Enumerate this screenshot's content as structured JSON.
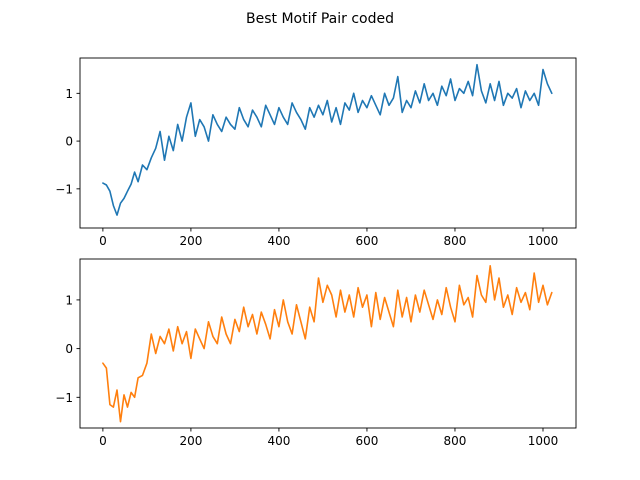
{
  "title": "Best Motif Pair coded",
  "chart_data": [
    {
      "type": "line",
      "title": "",
      "xlabel": "",
      "ylabel": "",
      "xlim": [
        -52,
        1075
      ],
      "ylim": [
        -1.82,
        1.74
      ],
      "xticks": [
        0,
        200,
        400,
        600,
        800,
        1000
      ],
      "yticks": [
        -1,
        0,
        1
      ],
      "grid": false,
      "series": [
        {
          "color": "#1f77b4",
          "x": [
            0,
            8,
            16,
            24,
            32,
            40,
            48,
            56,
            64,
            72,
            80,
            90,
            100,
            110,
            120,
            130,
            140,
            150,
            160,
            170,
            180,
            190,
            200,
            210,
            220,
            230,
            240,
            250,
            260,
            270,
            280,
            290,
            300,
            310,
            320,
            330,
            340,
            350,
            360,
            370,
            380,
            390,
            400,
            410,
            420,
            430,
            440,
            450,
            460,
            470,
            480,
            490,
            500,
            510,
            520,
            530,
            540,
            550,
            560,
            570,
            580,
            590,
            600,
            610,
            620,
            630,
            640,
            650,
            660,
            670,
            680,
            690,
            700,
            710,
            720,
            730,
            740,
            750,
            760,
            770,
            780,
            790,
            800,
            810,
            820,
            830,
            840,
            850,
            860,
            870,
            880,
            890,
            900,
            910,
            920,
            930,
            940,
            950,
            960,
            970,
            980,
            990,
            1000,
            1010,
            1020
          ],
          "y": [
            -0.88,
            -0.92,
            -1.05,
            -1.35,
            -1.55,
            -1.3,
            -1.2,
            -1.05,
            -0.9,
            -0.65,
            -0.85,
            -0.5,
            -0.6,
            -0.35,
            -0.15,
            0.2,
            -0.4,
            0.1,
            -0.2,
            0.35,
            0.0,
            0.5,
            0.8,
            0.1,
            0.45,
            0.3,
            0.0,
            0.55,
            0.35,
            0.2,
            0.5,
            0.35,
            0.25,
            0.7,
            0.45,
            0.3,
            0.65,
            0.5,
            0.3,
            0.75,
            0.55,
            0.35,
            0.7,
            0.5,
            0.35,
            0.8,
            0.6,
            0.45,
            0.25,
            0.7,
            0.5,
            0.75,
            0.55,
            0.85,
            0.4,
            0.7,
            0.35,
            0.8,
            0.65,
            1.0,
            0.6,
            0.85,
            0.7,
            0.95,
            0.75,
            0.55,
            1.0,
            0.75,
            0.9,
            1.35,
            0.6,
            0.85,
            0.7,
            1.05,
            0.8,
            1.2,
            0.85,
            1.0,
            0.75,
            1.15,
            0.95,
            1.3,
            0.85,
            1.1,
            1.0,
            1.25,
            0.95,
            1.6,
            1.05,
            0.8,
            1.2,
            0.85,
            1.25,
            0.75,
            1.0,
            0.9,
            1.1,
            0.7,
            1.05,
            0.85,
            1.0,
            0.75,
            1.5,
            1.2,
            1.0
          ]
        }
      ]
    },
    {
      "type": "line",
      "title": "",
      "xlabel": "",
      "ylabel": "",
      "xlim": [
        -52,
        1075
      ],
      "ylim": [
        -1.63,
        1.84
      ],
      "xticks": [
        0,
        200,
        400,
        600,
        800,
        1000
      ],
      "yticks": [
        -1,
        0,
        1
      ],
      "grid": false,
      "series": [
        {
          "color": "#ff7f0e",
          "x": [
            0,
            8,
            16,
            24,
            32,
            40,
            48,
            56,
            64,
            72,
            80,
            90,
            100,
            110,
            120,
            130,
            140,
            150,
            160,
            170,
            180,
            190,
            200,
            210,
            220,
            230,
            240,
            250,
            260,
            270,
            280,
            290,
            300,
            310,
            320,
            330,
            340,
            350,
            360,
            370,
            380,
            390,
            400,
            410,
            420,
            430,
            440,
            450,
            460,
            470,
            480,
            490,
            500,
            510,
            520,
            530,
            540,
            550,
            560,
            570,
            580,
            590,
            600,
            610,
            620,
            630,
            640,
            650,
            660,
            670,
            680,
            690,
            700,
            710,
            720,
            730,
            740,
            750,
            760,
            770,
            780,
            790,
            800,
            810,
            820,
            830,
            840,
            850,
            860,
            870,
            880,
            890,
            900,
            910,
            920,
            930,
            940,
            950,
            960,
            970,
            980,
            990,
            1000,
            1010,
            1020
          ],
          "y": [
            -0.3,
            -0.4,
            -1.15,
            -1.2,
            -0.85,
            -1.5,
            -0.95,
            -1.2,
            -0.9,
            -1.0,
            -0.6,
            -0.55,
            -0.3,
            0.3,
            -0.1,
            0.25,
            0.1,
            0.4,
            -0.05,
            0.45,
            0.1,
            0.35,
            -0.2,
            0.4,
            0.2,
            0.0,
            0.55,
            0.25,
            0.1,
            0.65,
            0.3,
            0.1,
            0.6,
            0.35,
            0.85,
            0.45,
            0.7,
            0.3,
            0.75,
            0.5,
            0.2,
            0.8,
            0.45,
            1.0,
            0.55,
            0.3,
            0.9,
            0.55,
            0.2,
            0.85,
            0.55,
            1.45,
            0.95,
            1.3,
            1.1,
            0.65,
            1.2,
            0.75,
            1.1,
            0.65,
            1.25,
            0.85,
            1.1,
            0.45,
            1.15,
            0.6,
            1.05,
            0.75,
            0.45,
            1.2,
            0.65,
            1.05,
            0.55,
            1.1,
            0.75,
            1.2,
            0.9,
            0.6,
            1.0,
            0.7,
            1.25,
            0.85,
            0.55,
            1.3,
            0.9,
            1.05,
            0.65,
            1.5,
            1.1,
            0.95,
            1.7,
            1.0,
            1.45,
            0.85,
            1.1,
            0.7,
            1.25,
            0.95,
            1.15,
            0.8,
            1.55,
            0.95,
            1.3,
            0.9,
            1.15
          ]
        }
      ]
    }
  ]
}
